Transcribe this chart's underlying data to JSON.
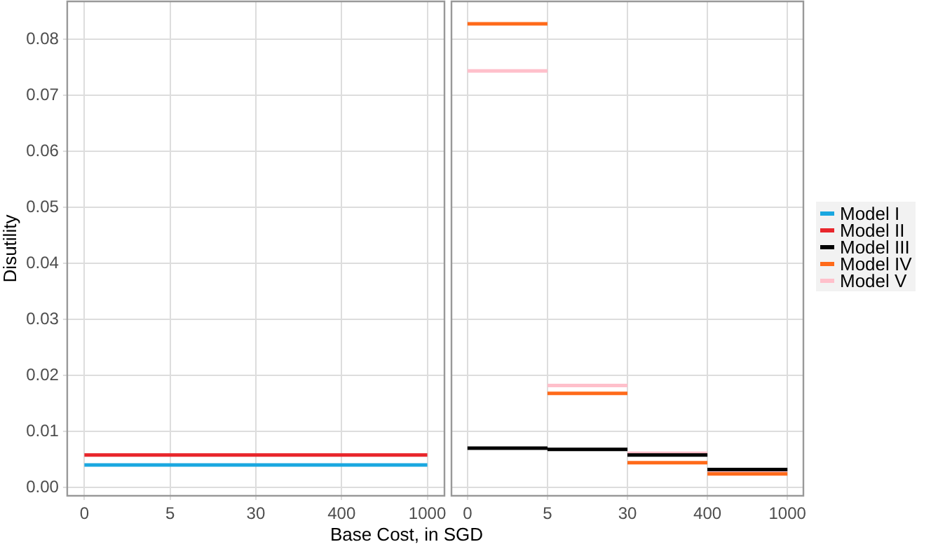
{
  "chart_data": [
    {
      "type": "line",
      "ylabel": "Disutility",
      "legend": "right",
      "categories": [
        "0",
        "5",
        "30",
        "400",
        "1000"
      ],
      "ylim": [
        -0.0015,
        0.0868
      ],
      "yticks": [
        {
          "value": 0,
          "label": "0.00"
        },
        {
          "value": 0.01,
          "label": "0.01"
        },
        {
          "value": 0.02,
          "label": "0.02"
        },
        {
          "value": 0.03,
          "label": "0.03"
        },
        {
          "value": 0.04,
          "label": "0.04"
        },
        {
          "value": 0.05,
          "label": "0.05"
        },
        {
          "value": 0.06,
          "label": "0.06"
        },
        {
          "value": 0.07,
          "label": "0.07"
        },
        {
          "value": 0.08,
          "label": "0.08"
        }
      ],
      "grid": true,
      "series": [
        {
          "name": "Model I",
          "color": "#1aa7e0",
          "values": [
            0.004,
            0.004,
            0.004,
            0.004,
            0.004
          ]
        },
        {
          "name": "Model II",
          "color": "#e8262b",
          "values": [
            0.0058,
            0.0058,
            0.0058,
            0.0058,
            0.0058
          ]
        }
      ]
    },
    {
      "type": "step",
      "xlabel": "Base Cost, in SGD",
      "categories": [
        "0",
        "5",
        "30",
        "400",
        "1000"
      ],
      "ylim": [
        -0.0015,
        0.0868
      ],
      "yticks": [
        {
          "value": 0,
          "label": null
        },
        {
          "value": 0.01,
          "label": null
        },
        {
          "value": 0.02,
          "label": null
        },
        {
          "value": 0.03,
          "label": null
        },
        {
          "value": 0.04,
          "label": null
        },
        {
          "value": 0.05,
          "label": null
        },
        {
          "value": 0.06,
          "label": null
        },
        {
          "value": 0.07,
          "label": null
        },
        {
          "value": 0.08,
          "label": null
        }
      ],
      "tick_labels": "x",
      "grid": true,
      "legend": "right",
      "series": [
        {
          "name": "Model III",
          "color": "#000000",
          "values": [
            0.007,
            0.0068,
            0.0058,
            0.0032,
            0.0032
          ]
        },
        {
          "name": "Model IV",
          "color": "#ff6a1a",
          "values": [
            0.0828,
            0.0168,
            0.0044,
            0.0024,
            0.0024
          ]
        },
        {
          "name": "Model V",
          "color": "#ffc0cb",
          "values": [
            0.0744,
            0.0182,
            0.0061,
            0.0027,
            0.0027
          ]
        }
      ]
    }
  ]
}
